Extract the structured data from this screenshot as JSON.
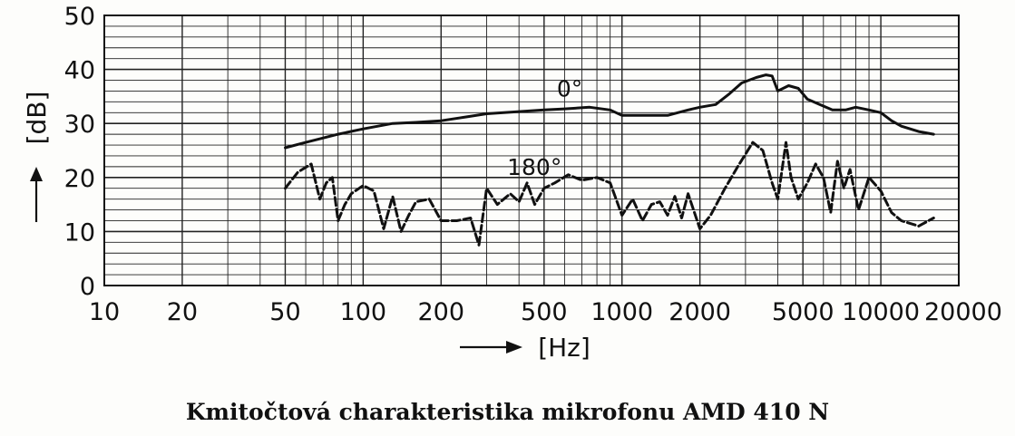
{
  "caption": "Kmitočtová charakteristika mikrofonu AMD 410 N",
  "chart_data": {
    "type": "line",
    "title": "",
    "xlabel": "[Hz]",
    "ylabel": "[dB]",
    "x_scale": "log",
    "xlim": [
      10,
      20000
    ],
    "ylim": [
      0,
      50
    ],
    "grid": true,
    "x_ticks": [
      10,
      20,
      50,
      100,
      200,
      500,
      1000,
      2000,
      5000,
      10000,
      20000
    ],
    "x_tick_labels": [
      "10",
      "20",
      "50",
      "100",
      "200",
      "500",
      "1000",
      "2000",
      "5000",
      "10000",
      "20000"
    ],
    "y_ticks": [
      0,
      10,
      20,
      30,
      40,
      50
    ],
    "y_tick_labels": [
      "0",
      "10",
      "20",
      "30",
      "40",
      "50"
    ],
    "series": [
      {
        "name": "0°",
        "style": "solid",
        "x": [
          50,
          60,
          80,
          100,
          130,
          160,
          200,
          250,
          300,
          400,
          500,
          600,
          750,
          900,
          1000,
          1200,
          1500,
          1800,
          2000,
          2300,
          2600,
          2900,
          3300,
          3600,
          3800,
          4000,
          4400,
          4800,
          5200,
          5800,
          6500,
          7300,
          8000,
          9000,
          10000,
          11000,
          12000,
          14000,
          16000
        ],
        "values": [
          25.5,
          26.5,
          28,
          29,
          30,
          30.2,
          30.5,
          31.2,
          31.8,
          32.2,
          32.5,
          32.7,
          33,
          32.5,
          31.5,
          31.5,
          31.5,
          32.5,
          33,
          33.5,
          35.5,
          37.5,
          38.5,
          39,
          38.8,
          36,
          37,
          36.5,
          34.5,
          33.5,
          32.5,
          32.5,
          33,
          32.5,
          32,
          30.5,
          29.5,
          28.5,
          28
        ]
      },
      {
        "name": "180°",
        "style": "dashed",
        "x": [
          50,
          56,
          63,
          68,
          72,
          76,
          80,
          85,
          90,
          100,
          110,
          120,
          130,
          140,
          150,
          160,
          180,
          200,
          230,
          260,
          280,
          300,
          330,
          370,
          400,
          430,
          460,
          500,
          550,
          620,
          700,
          800,
          900,
          1000,
          1100,
          1200,
          1300,
          1400,
          1500,
          1600,
          1700,
          1800,
          2000,
          2200,
          2500,
          2800,
          3200,
          3500,
          3800,
          4000,
          4300,
          4500,
          4800,
          5200,
          5600,
          6000,
          6400,
          6800,
          7200,
          7600,
          8200,
          9000,
          10000,
          11000,
          12000,
          14000,
          16000
        ],
        "values": [
          18,
          21,
          22.5,
          16,
          19,
          20,
          12,
          15,
          17,
          18.5,
          17.5,
          10.5,
          16.5,
          10,
          13,
          15.5,
          16,
          12,
          12,
          12.5,
          7.5,
          18,
          15,
          17,
          15.5,
          19,
          15,
          18,
          19,
          20.5,
          19.5,
          20,
          19,
          13,
          16,
          12,
          15,
          15.5,
          13,
          16.5,
          12.5,
          17,
          10.5,
          13,
          18,
          22,
          26.5,
          25,
          19,
          16,
          26.5,
          20,
          16,
          19,
          22.5,
          20,
          13.5,
          23,
          18,
          21.5,
          14,
          20,
          17.5,
          13.5,
          12,
          11,
          12.5
        ]
      }
    ]
  }
}
